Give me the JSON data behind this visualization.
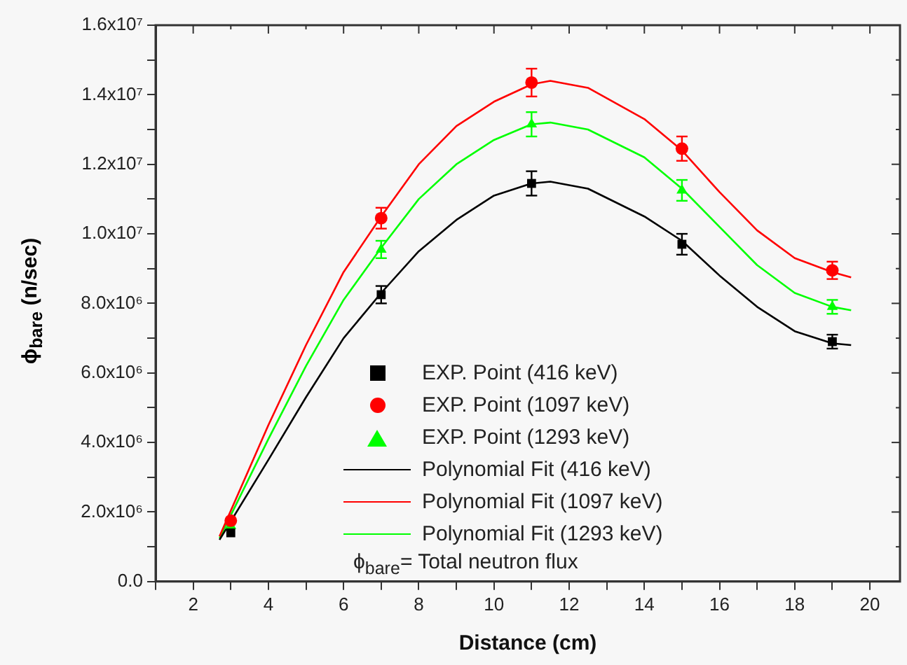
{
  "chart_data": {
    "type": "scatter",
    "xlabel": "Distance (cm)",
    "ylabel": "ϕ$_{bare}$ (n/sec)",
    "xlim": [
      1,
      20.8
    ],
    "xticks": [
      {
        "value": 1,
        "label": null
      },
      2,
      {
        "value": 3,
        "label": null
      },
      4,
      {
        "value": 5,
        "label": null
      },
      6,
      {
        "value": 7,
        "label": null
      },
      8,
      {
        "value": 9,
        "label": null
      },
      10,
      {
        "value": 11,
        "label": null
      },
      12,
      {
        "value": 13,
        "label": null
      },
      14,
      {
        "value": 15,
        "label": null
      },
      16,
      {
        "value": 17,
        "label": null
      },
      18,
      {
        "value": 19,
        "label": null
      },
      20
    ],
    "ylim": [
      0,
      16000000
    ],
    "yticks": [
      {
        "value": 0,
        "label": "0.0"
      },
      {
        "value": 1000000,
        "label": null
      },
      {
        "value": 2000000,
        "label": "2.0x10⁶"
      },
      {
        "value": 3000000,
        "label": null
      },
      {
        "value": 4000000,
        "label": "4.0x10⁶"
      },
      {
        "value": 5000000,
        "label": null
      },
      {
        "value": 6000000,
        "label": "6.0x10⁶"
      },
      {
        "value": 7000000,
        "label": null
      },
      {
        "value": 8000000,
        "label": "8.0x10⁶"
      },
      {
        "value": 9000000,
        "label": null
      },
      {
        "value": 10000000,
        "label": "1.0x10⁷"
      },
      {
        "value": 11000000,
        "label": null
      },
      {
        "value": 12000000,
        "label": "1.2x10⁷"
      },
      {
        "value": 13000000,
        "label": null
      },
      {
        "value": 14000000,
        "label": "1.4x10⁷"
      },
      {
        "value": 15000000,
        "label": null
      },
      {
        "value": 16000000,
        "label": "1.6x10⁷"
      }
    ],
    "grid": false,
    "legend": "bottom",
    "annotations": [
      "ϕ$_{bare}$= Total neutron flux"
    ],
    "series": [
      {
        "name": "EXP. Point (416 keV)",
        "marker": "square",
        "color": "#000000",
        "x": [
          3,
          7,
          11,
          15,
          19
        ],
        "values": [
          1400000,
          8250000,
          11450000,
          9700000,
          6900000
        ],
        "errors": [
          null,
          250000,
          350000,
          300000,
          200000
        ]
      },
      {
        "name": "EXP. Point (1097 keV)",
        "marker": "circle",
        "color": "#ff0000",
        "x": [
          3,
          7,
          11,
          15,
          19
        ],
        "values": [
          1750000,
          10450000,
          14350000,
          12450000,
          8950000
        ],
        "errors": [
          null,
          300000,
          400000,
          350000,
          250000
        ]
      },
      {
        "name": "EXP. Point (1293 keV)",
        "marker": "triangle",
        "color": "#00ff00",
        "x": [
          3,
          7,
          11,
          15,
          19
        ],
        "values": [
          1600000,
          9550000,
          13150000,
          11250000,
          7900000
        ],
        "errors": [
          null,
          250000,
          350000,
          300000,
          200000
        ]
      },
      {
        "name": "Polynomial Fit (416 keV)",
        "type": "line",
        "marker": "none",
        "color": "#000000",
        "x": [
          2.7,
          4,
          5,
          6,
          7,
          8,
          9,
          10,
          11,
          11.5,
          12.5,
          14,
          15,
          16,
          17,
          18,
          19,
          19.5
        ],
        "values": [
          1200000,
          3500000,
          5300000,
          7000000,
          8300000,
          9500000,
          10400000,
          11100000,
          11450000,
          11500000,
          11300000,
          10500000,
          9800000,
          8800000,
          7900000,
          7200000,
          6850000,
          6800000
        ]
      },
      {
        "name": "Polynomial Fit (1097 keV)",
        "type": "line",
        "marker": "none",
        "color": "#ff0000",
        "x": [
          2.7,
          4,
          5,
          6,
          7,
          8,
          9,
          10,
          11,
          11.5,
          12.5,
          14,
          15,
          16,
          17,
          18,
          19,
          19.5
        ],
        "values": [
          1300000,
          4500000,
          6800000,
          8900000,
          10500000,
          12000000,
          13100000,
          13800000,
          14300000,
          14400000,
          14200000,
          13300000,
          12400000,
          11200000,
          10100000,
          9300000,
          8900000,
          8750000
        ]
      },
      {
        "name": "Polynomial Fit (1293 keV)",
        "type": "line",
        "marker": "none",
        "color": "#00ff00",
        "x": [
          2.7,
          4,
          5,
          6,
          7,
          8,
          9,
          10,
          11,
          11.5,
          12.5,
          14,
          15,
          16,
          17,
          18,
          19,
          19.5
        ],
        "values": [
          1250000,
          4100000,
          6200000,
          8100000,
          9600000,
          11000000,
          12000000,
          12700000,
          13150000,
          13200000,
          13000000,
          12200000,
          11300000,
          10200000,
          9100000,
          8300000,
          7900000,
          7800000
        ]
      }
    ]
  }
}
